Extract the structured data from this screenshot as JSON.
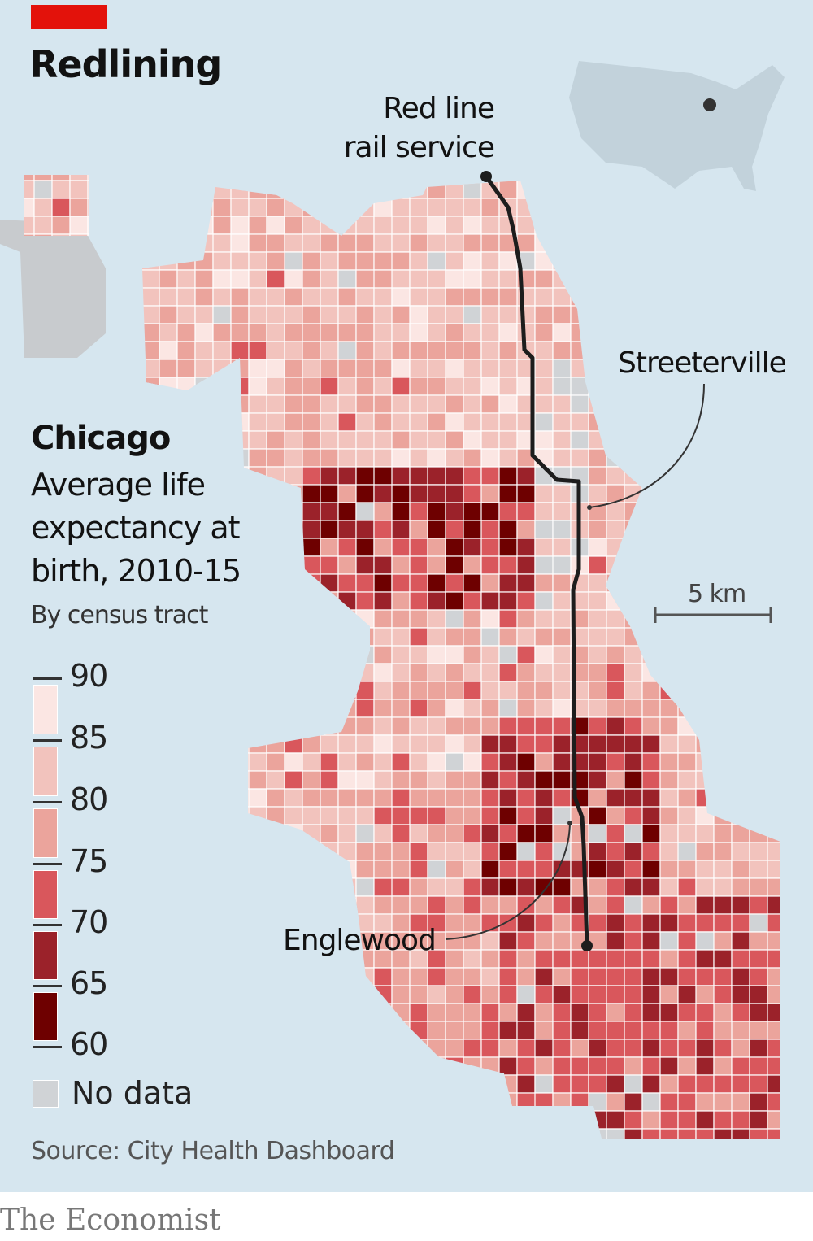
{
  "title": "Redlining",
  "subtitle": {
    "city": "Chicago",
    "description": "Average life expectancy at birth, 2010-15",
    "by": "By census tract"
  },
  "annotations": {
    "red_line": "Red line rail service",
    "streeterville": "Streeterville",
    "englewood": "Englewood",
    "scale": "5 km"
  },
  "legend": {
    "ticks": [
      "90",
      "85",
      "80",
      "75",
      "70",
      "65",
      "60"
    ],
    "bins": [
      {
        "range": "85-90",
        "color": "#fbe6e3"
      },
      {
        "range": "80-85",
        "color": "#f2c3bd"
      },
      {
        "range": "75-80",
        "color": "#eba49c"
      },
      {
        "range": "70-75",
        "color": "#d9575c"
      },
      {
        "range": "65-70",
        "color": "#9b222a"
      },
      {
        "range": "60-65",
        "color": "#6e0000"
      }
    ],
    "no_data_label": "No data",
    "no_data_color": "#d0d3d6"
  },
  "colors": {
    "background": "#d6e6ef",
    "accent": "#e3120b",
    "route": "#1d1d1d",
    "land_outside": "#c2d2db"
  },
  "source": "Source: City Health Dashboard",
  "footer": "The Economist"
}
